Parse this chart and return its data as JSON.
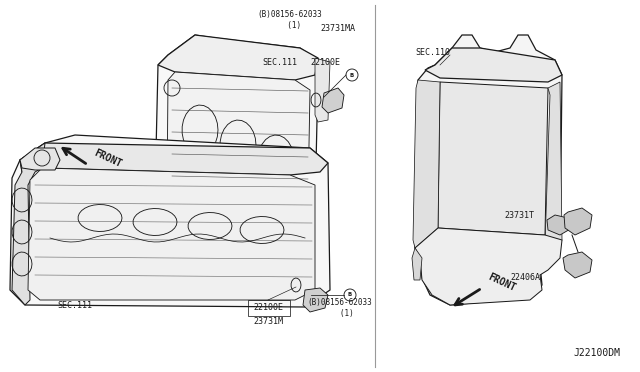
{
  "bg_color": "#ffffff",
  "line_color": "#1a1a1a",
  "fig_width": 6.4,
  "fig_height": 3.72,
  "dpi": 100,
  "labels": {
    "sec111_top": "SEC.111",
    "sec111_bot": "SEC.111",
    "sec110": "SEC.110",
    "part_22100E_top": "22100E",
    "part_22100E_bot": "22100E",
    "part_23731MA": "23731MA",
    "part_23731M": "23731M",
    "part_23731T": "23731T",
    "part_22406A": "22406A",
    "bolt_top": "(B)08156-62033\n  (1)",
    "bolt_bot": "(B)08156-62033\n   (1)",
    "front_top": "FRONT",
    "front_bot": "FRONT",
    "diagram_code": "J22100DM"
  }
}
